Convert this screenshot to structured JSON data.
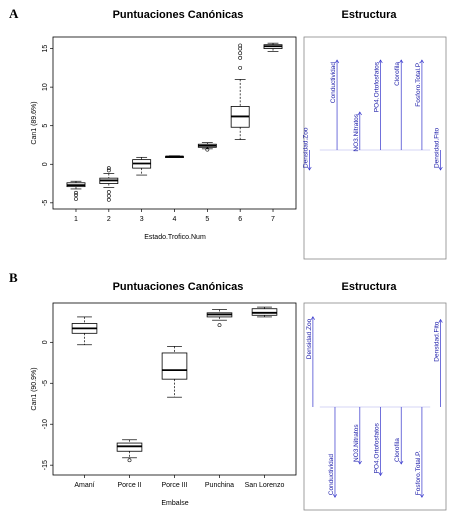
{
  "colors": {
    "box_stroke": "#000000",
    "box_fill": "#ffffff",
    "frame": "#000000",
    "arrow": "#3333cc",
    "arrow_label": "#1a1aa8",
    "panel_divider": "#888888"
  },
  "chart_data": [
    {
      "panel": "A",
      "type": "box",
      "title": "Puntuaciones Canónicas",
      "xlabel": "Estado.Trofico.Num",
      "ylabel": "Can1 (89.6%)",
      "categories": [
        "1",
        "2",
        "3",
        "4",
        "5",
        "6",
        "7"
      ],
      "ylim": [
        -5.8,
        16.5
      ],
      "yticks": [
        "-5",
        "0",
        "5",
        "10",
        "15"
      ],
      "boxes": [
        {
          "min": -3.2,
          "q1": -2.9,
          "median": -2.7,
          "q3": -2.4,
          "max": -2.2,
          "outliers": [
            -3.7,
            -4.0,
            -4.5
          ]
        },
        {
          "min": -3.0,
          "q1": -2.5,
          "median": -2.1,
          "q3": -1.8,
          "max": -1.2,
          "outliers": [
            -0.8,
            -0.5,
            -3.6,
            -4.1,
            -4.6
          ]
        },
        {
          "min": -1.4,
          "q1": -0.5,
          "median": 0.1,
          "q3": 0.6,
          "max": 0.9,
          "outliers": []
        },
        {
          "min": 0.9,
          "q1": 0.9,
          "median": 1.0,
          "q3": 1.0,
          "max": 1.1,
          "outliers": []
        },
        {
          "min": 2.0,
          "q1": 2.2,
          "median": 2.4,
          "q3": 2.6,
          "max": 2.8,
          "outliers": [
            1.9
          ]
        },
        {
          "min": 3.2,
          "q1": 4.8,
          "median": 6.2,
          "q3": 7.5,
          "max": 11.0,
          "outliers": [
            12.5,
            13.8,
            14.4,
            15.0,
            15.4
          ]
        },
        {
          "min": 14.6,
          "q1": 15.0,
          "median": 15.3,
          "q3": 15.5,
          "max": 15.7,
          "outliers": []
        }
      ]
    },
    {
      "panel": "B",
      "type": "box",
      "title": "Puntuaciones Canónicas",
      "xlabel": "Embalse",
      "ylabel": "Can1 (90.9%)",
      "categories": [
        "Amaní",
        "Porce II",
        "Porce III",
        "Punchina",
        "San Lorenzo"
      ],
      "ylim": [
        -16.2,
        4.8
      ],
      "yticks": [
        "-15",
        "-10",
        "-5",
        "0"
      ],
      "boxes": [
        {
          "min": -0.3,
          "q1": 1.1,
          "median": 1.7,
          "q3": 2.3,
          "max": 3.1,
          "outliers": []
        },
        {
          "min": -14.1,
          "q1": -13.3,
          "median": -12.7,
          "q3": -12.3,
          "max": -11.9,
          "outliers": [
            -14.4
          ]
        },
        {
          "min": -6.7,
          "q1": -4.5,
          "median": -3.4,
          "q3": -1.3,
          "max": -0.5,
          "outliers": []
        },
        {
          "min": 2.7,
          "q1": 3.1,
          "median": 3.4,
          "q3": 3.6,
          "max": 4.0,
          "outliers": [
            2.1
          ]
        },
        {
          "min": 3.1,
          "q1": 3.3,
          "median": 3.6,
          "q3": 4.1,
          "max": 4.3,
          "outliers": []
        }
      ]
    }
  ],
  "structure": [
    {
      "panel": "A",
      "title": "Estructura",
      "xlim": [
        -1,
        1
      ],
      "ylim": [
        -1,
        1
      ],
      "arrows": [
        {
          "label": "Densidad.Zoo",
          "x": -0.95,
          "y": -0.2
        },
        {
          "label": "Conductividad",
          "x": -0.55,
          "y": 0.9
        },
        {
          "label": "NO3.Nitratos",
          "x": -0.22,
          "y": 0.38
        },
        {
          "label": "PO4.Ortofosfatos",
          "x": 0.08,
          "y": 0.9
        },
        {
          "label": "Clorofila",
          "x": 0.38,
          "y": 0.9
        },
        {
          "label": "Fosforo.Total.P.",
          "x": 0.68,
          "y": 0.9
        },
        {
          "label": "Densidad.Fito",
          "x": 0.95,
          "y": -0.2
        }
      ]
    },
    {
      "panel": "B",
      "title": "Estructura",
      "xlim": [
        -1,
        1
      ],
      "ylim": [
        -1,
        1
      ],
      "arrows": [
        {
          "label": "Densidad.Zoo",
          "x": -0.9,
          "y": 0.95
        },
        {
          "label": "Conductividad",
          "x": -0.58,
          "y": -0.95
        },
        {
          "label": "NO3.Nitratos",
          "x": -0.22,
          "y": -0.6
        },
        {
          "label": "PO4.Ortofosfatos",
          "x": 0.08,
          "y": -0.72
        },
        {
          "label": "Clorofila",
          "x": 0.38,
          "y": -0.6
        },
        {
          "label": "Fosforo.Total.P.",
          "x": 0.68,
          "y": -0.95
        },
        {
          "label": "Densidad.Fito",
          "x": 0.95,
          "y": 0.92
        }
      ]
    }
  ]
}
